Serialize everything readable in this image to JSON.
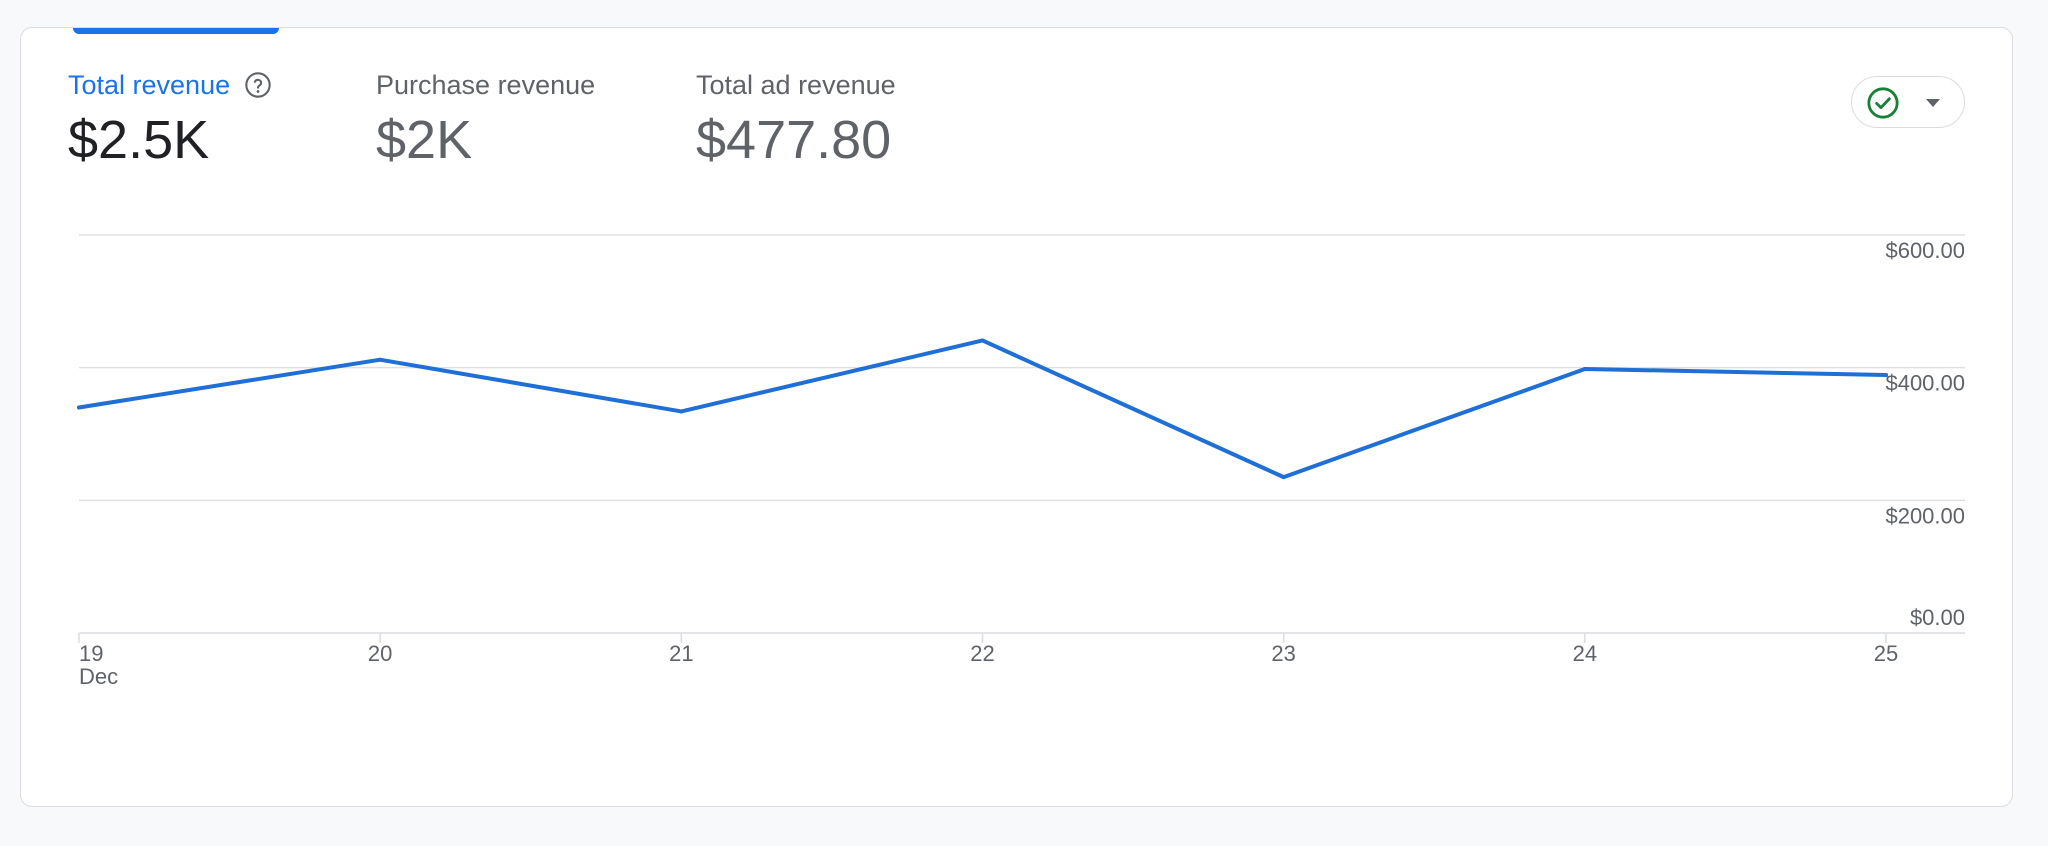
{
  "metrics": [
    {
      "label": "Total revenue",
      "value": "$2.5K",
      "active": true
    },
    {
      "label": "Purchase revenue",
      "value": "$2K",
      "active": false
    },
    {
      "label": "Total ad revenue",
      "value": "$477.80",
      "active": false
    }
  ],
  "icons": {
    "help": "help-circle-icon",
    "status": "check-circle-icon",
    "dropdown": "caret-down-icon"
  },
  "colors": {
    "accent": "#1a73e8",
    "line": "#1f6fd6",
    "success": "#188038",
    "grid": "#e0e0e0",
    "text_secondary": "#5f6368"
  },
  "chart_data": {
    "type": "line",
    "x": [
      "19",
      "20",
      "21",
      "22",
      "23",
      "24",
      "25"
    ],
    "x_sublabel": "Dec",
    "series": [
      {
        "values": [
          340,
          412,
          334,
          441,
          235,
          398,
          389
        ]
      }
    ],
    "y_ticks": [
      "$0.00",
      "$200.00",
      "$400.00",
      "$600.00"
    ],
    "ylim": [
      0,
      600
    ],
    "y_axis_position": "right",
    "grid": true
  }
}
